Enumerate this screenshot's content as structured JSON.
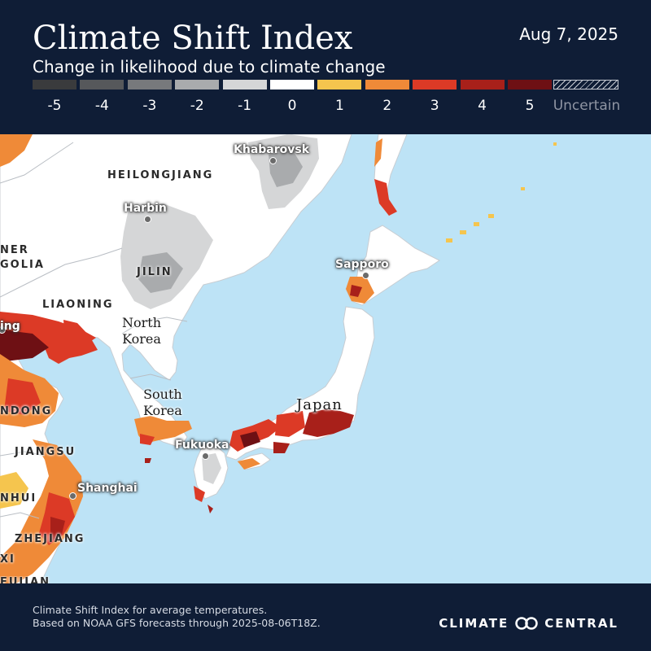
{
  "header": {
    "title": "Climate Shift Index",
    "subtitle": "Change in likelihood due to climate change",
    "date": "Aug 7, 2025"
  },
  "legend": {
    "items": [
      {
        "label": "-5",
        "color": "#3a3b3d"
      },
      {
        "label": "-4",
        "color": "#56585b"
      },
      {
        "label": "-3",
        "color": "#77797c"
      },
      {
        "label": "-2",
        "color": "#a9abad"
      },
      {
        "label": "-1",
        "color": "#d5d6d7"
      },
      {
        "label": "0",
        "color": "#ffffff"
      },
      {
        "label": "1",
        "color": "#f5c54e"
      },
      {
        "label": "2",
        "color": "#ef8a38"
      },
      {
        "label": "3",
        "color": "#dc3a26"
      },
      {
        "label": "4",
        "color": "#a8201a"
      },
      {
        "label": "5",
        "color": "#6e1014"
      }
    ],
    "uncertain_label": "Uncertain"
  },
  "map": {
    "provinces": {
      "heilongjiang": "HEILONGJIANG",
      "jilin": "JILIN",
      "liaoning": "LIAONING",
      "inner_mongolia_1": "NER",
      "inner_mongolia_2": "GOLIA",
      "shandong": "NDONG",
      "jiangsu": "JIANGSU",
      "anhui": "NHUI",
      "zhejiang": "ZHEJIANG",
      "jiangxi": "XI",
      "fujian": "FUJIAN"
    },
    "countries": {
      "north_korea": "North\nKorea",
      "south_korea": "South\nKorea",
      "japan": "Japan"
    },
    "cities": {
      "khabarovsk": "Khabarovsk",
      "harbin": "Harbin",
      "sapporo": "Sapporo",
      "fukuoka": "Fukuoka",
      "shanghai": "Shanghai",
      "beijing": "ing"
    }
  },
  "footer": {
    "note_line1": "Climate Shift Index for average temperatures.",
    "note_line2": "Based on NOAA GFS forecasts through 2025-08-06T18Z.",
    "brand_left": "CLIMATE",
    "brand_right": "CENTRAL"
  }
}
